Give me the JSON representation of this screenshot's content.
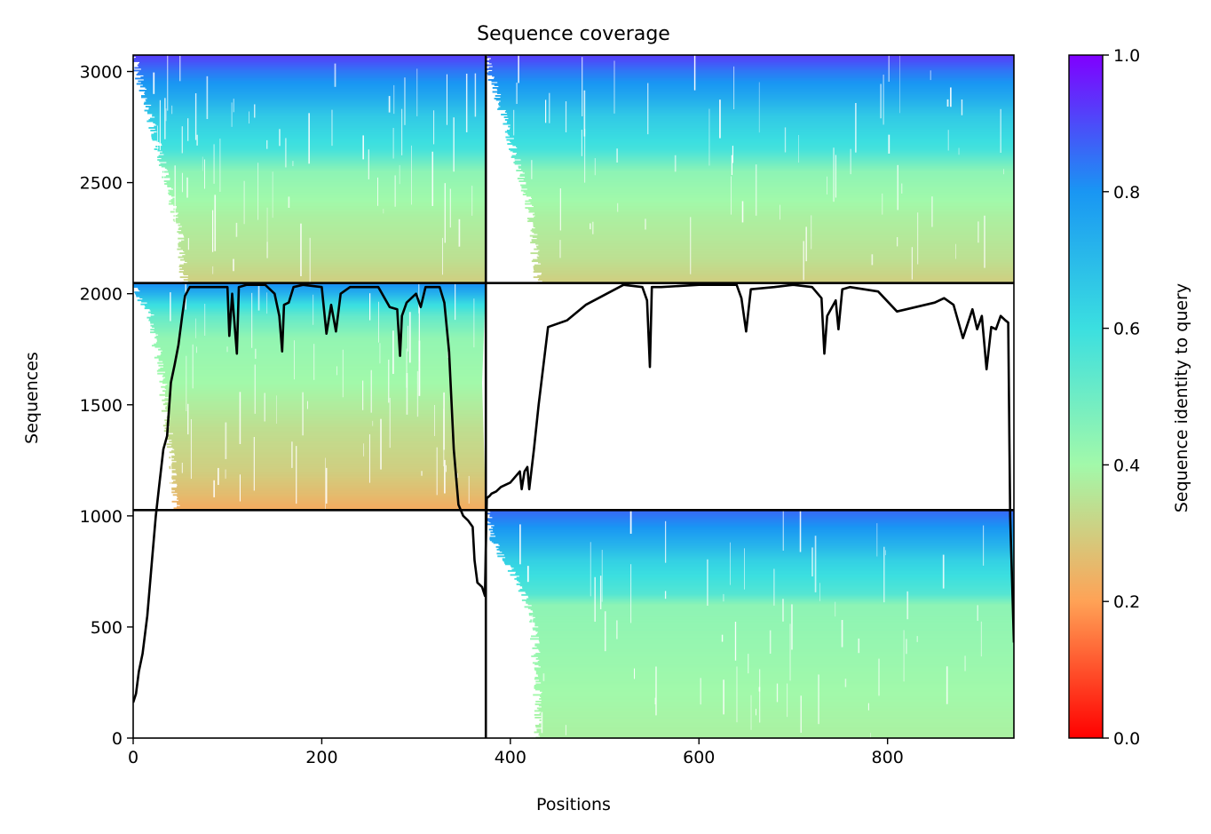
{
  "chart_data": {
    "type": "heatmap",
    "title": "Sequence coverage",
    "xlabel": "Positions",
    "ylabel": "Sequences",
    "xlim": [
      0,
      934
    ],
    "ylim": [
      0,
      3074
    ],
    "x_ticks": [
      0,
      200,
      400,
      600,
      800
    ],
    "y_ticks": [
      0,
      500,
      1000,
      1500,
      2000,
      2500,
      3000
    ],
    "grid": false,
    "colormap": "rainbow (red at 0 to violet at 1)",
    "colorbar": {
      "label": "Sequence identity to query",
      "range": [
        0,
        1
      ],
      "ticks": [
        0.0,
        0.2,
        0.4,
        0.6,
        0.8,
        1.0
      ],
      "tick_labels": [
        "0.0",
        "0.2",
        "0.4",
        "0.6",
        "0.8",
        "1.0"
      ],
      "stops": [
        {
          "v": 0.0,
          "color": "#ff0000"
        },
        {
          "v": 0.2,
          "color": "#ffa256"
        },
        {
          "v": 0.4,
          "color": "#a2f9aa"
        },
        {
          "v": 0.6,
          "color": "#3bdfe0"
        },
        {
          "v": 0.8,
          "color": "#1996f3"
        },
        {
          "v": 1.0,
          "color": "#8000ff"
        }
      ]
    },
    "chain_boundary_x": 374,
    "chain_boundary_y": [
      1026,
      2048
    ],
    "blocks": [
      {
        "x_range": [
          0,
          374
        ],
        "y_range": [
          1026,
          2048
        ],
        "coverage_start": [
          [
            1026,
            45
          ],
          [
            1300,
            40
          ],
          [
            1700,
            28
          ],
          [
            1900,
            18
          ],
          [
            2048,
            0
          ]
        ],
        "coverage_end": [
          [
            1026,
            374
          ],
          [
            1600,
            370
          ],
          [
            2048,
            374
          ]
        ],
        "identity_bands": [
          [
            1026,
            0.22
          ],
          [
            1100,
            0.26
          ],
          [
            1200,
            0.3
          ],
          [
            1400,
            0.34
          ],
          [
            1600,
            0.4
          ],
          [
            1800,
            0.43
          ],
          [
            1900,
            0.52
          ],
          [
            1960,
            0.62
          ],
          [
            2000,
            0.72
          ],
          [
            2048,
            0.82
          ]
        ]
      },
      {
        "x_range": [
          374,
          934
        ],
        "y_range": [
          0,
          1026
        ],
        "coverage_start": [
          [
            0,
            430
          ],
          [
            300,
            428
          ],
          [
            500,
            425
          ],
          [
            700,
            410
          ],
          [
            850,
            385
          ],
          [
            1026,
            374
          ]
        ],
        "coverage_end": [
          [
            0,
            934
          ],
          [
            1026,
            934
          ]
        ],
        "identity_bands": [
          [
            0,
            0.38
          ],
          [
            300,
            0.41
          ],
          [
            600,
            0.44
          ],
          [
            650,
            0.55
          ],
          [
            800,
            0.64
          ],
          [
            870,
            0.72
          ],
          [
            950,
            0.8
          ],
          [
            1026,
            0.86
          ]
        ]
      },
      {
        "x_range": [
          0,
          374
        ],
        "y_range": [
          2048,
          3074
        ],
        "coverage_start": [
          [
            2048,
            55
          ],
          [
            2300,
            48
          ],
          [
            2600,
            30
          ],
          [
            2800,
            18
          ],
          [
            3074,
            0
          ]
        ],
        "coverage_end": [
          [
            2048,
            374
          ],
          [
            3074,
            374
          ]
        ],
        "identity_bands": [
          [
            2048,
            0.3
          ],
          [
            2150,
            0.34
          ],
          [
            2350,
            0.38
          ],
          [
            2550,
            0.44
          ],
          [
            2650,
            0.58
          ],
          [
            2800,
            0.66
          ],
          [
            2900,
            0.76
          ],
          [
            3000,
            0.84
          ],
          [
            3074,
            0.92
          ]
        ]
      },
      {
        "x_range": [
          374,
          934
        ],
        "y_range": [
          2048,
          3074
        ],
        "coverage_start": [
          [
            2048,
            430
          ],
          [
            2400,
            420
          ],
          [
            2700,
            400
          ],
          [
            2900,
            385
          ],
          [
            3074,
            374
          ]
        ],
        "coverage_end": [
          [
            2048,
            934
          ],
          [
            3074,
            934
          ]
        ],
        "identity_bands": [
          [
            2048,
            0.3
          ],
          [
            2150,
            0.34
          ],
          [
            2350,
            0.38
          ],
          [
            2550,
            0.44
          ],
          [
            2650,
            0.58
          ],
          [
            2800,
            0.66
          ],
          [
            2900,
            0.76
          ],
          [
            3000,
            0.84
          ],
          [
            3074,
            0.92
          ]
        ]
      }
    ],
    "series": [
      {
        "x": [
          0,
          3,
          6,
          10,
          15,
          20,
          24,
          28,
          32,
          36,
          40,
          44,
          48,
          52,
          55,
          60,
          70,
          80,
          90,
          100,
          102,
          105,
          110,
          112,
          120,
          140,
          150,
          155,
          158,
          160,
          165,
          170,
          180,
          200,
          205,
          210,
          215,
          220,
          230,
          260,
          272,
          280,
          283,
          285,
          290,
          300,
          305,
          310,
          315,
          320,
          325,
          330,
          335,
          340,
          345,
          350,
          355,
          360,
          362,
          365,
          370,
          373,
          375,
          378,
          380,
          385,
          390,
          400,
          410,
          412,
          415,
          418,
          420,
          425,
          430,
          440,
          460,
          480,
          520,
          540,
          545,
          548,
          550,
          560,
          600,
          640,
          645,
          650,
          655,
          680,
          700,
          720,
          730,
          733,
          736,
          745,
          748,
          752,
          760,
          790,
          810,
          850,
          860,
          870,
          880,
          890,
          895,
          900,
          905,
          910,
          915,
          920,
          925,
          928,
          930,
          934
        ],
        "y": [
          160,
          200,
          300,
          380,
          550,
          800,
          1000,
          1150,
          1300,
          1360,
          1600,
          1680,
          1770,
          1900,
          1990,
          2030,
          2030,
          2030,
          2030,
          2030,
          1810,
          2000,
          1730,
          2030,
          2040,
          2040,
          2000,
          1900,
          1740,
          1950,
          1960,
          2030,
          2040,
          2030,
          1820,
          1950,
          1830,
          2000,
          2030,
          2030,
          1940,
          1930,
          1720,
          1900,
          1960,
          2000,
          1940,
          2030,
          2030,
          2030,
          2030,
          1960,
          1740,
          1300,
          1050,
          1000,
          980,
          950,
          800,
          700,
          680,
          640,
          1080,
          1090,
          1100,
          1110,
          1130,
          1150,
          1200,
          1120,
          1200,
          1220,
          1120,
          1300,
          1500,
          1850,
          1880,
          1950,
          2040,
          2030,
          1970,
          1670,
          2030,
          2030,
          2040,
          2040,
          1980,
          1830,
          2020,
          2030,
          2040,
          2030,
          1980,
          1730,
          1900,
          1970,
          1840,
          2020,
          2030,
          2010,
          1920,
          1960,
          1980,
          1950,
          1800,
          1930,
          1840,
          1900,
          1660,
          1850,
          1840,
          1900,
          1880,
          1870,
          1000,
          430
        ]
      }
    ]
  }
}
